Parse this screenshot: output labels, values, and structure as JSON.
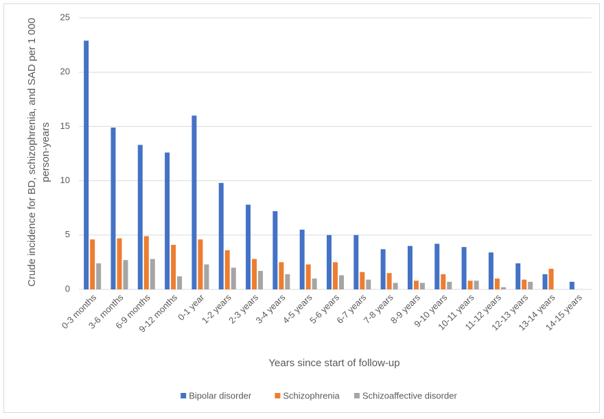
{
  "chart_data": {
    "type": "bar",
    "x_label": "Years since start of follow-up",
    "y_label": [
      "Crude incidence for BD, schizophrenia, and SAD per 1 000",
      "person-years"
    ],
    "categories": [
      "0-3 months",
      "3-6 months",
      "6-9 months",
      "9-12 months",
      "0-1 year",
      "1-2 years",
      "2-3 years",
      "3-4 years",
      "4-5 years",
      "5-6 years",
      "6-7 years",
      "7-8 years",
      "8-9 years",
      "9-10 years",
      "10-11 years",
      "11-12 years",
      "12-13 years",
      "13-14 years",
      "14-15 years"
    ],
    "series": [
      {
        "name": "Bipolar disorder",
        "color": "#4472c4",
        "values": [
          22.9,
          14.9,
          13.3,
          12.6,
          16.0,
          9.8,
          7.8,
          7.2,
          5.5,
          5.0,
          5.0,
          3.7,
          4.0,
          4.2,
          3.9,
          3.4,
          2.4,
          1.4,
          0.7
        ]
      },
      {
        "name": "Schizophrenia",
        "color": "#ed7d31",
        "values": [
          4.6,
          4.7,
          4.9,
          4.1,
          4.6,
          3.6,
          2.8,
          2.5,
          2.3,
          2.5,
          1.6,
          1.5,
          0.8,
          1.4,
          0.8,
          1.0,
          0.9,
          1.9,
          null
        ]
      },
      {
        "name": "Schizoaffective disorder",
        "color": "#a5a5a5",
        "values": [
          2.4,
          2.7,
          2.8,
          1.2,
          2.3,
          2.0,
          1.7,
          1.4,
          1.0,
          1.3,
          0.9,
          0.6,
          0.6,
          0.7,
          0.8,
          0.2,
          0.7,
          null,
          null
        ]
      }
    ],
    "ylim": [
      0,
      25
    ],
    "yticks": [
      0,
      5,
      10,
      15,
      20,
      25
    ],
    "grid": true,
    "legend": "bottom"
  }
}
